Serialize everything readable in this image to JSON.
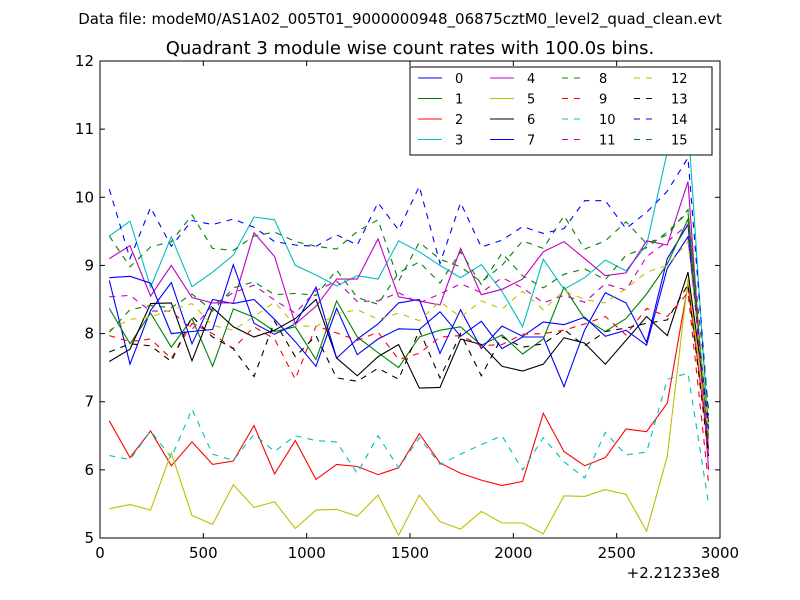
{
  "chart_data": {
    "type": "line",
    "suptitle": "Data file: modeM0/AS1A02_005T01_9000000948_06875cztM0_level2_quad_clean.evt",
    "title": "Quadrant 3 module wise count rates with 100.0s bins.",
    "xlabel": "",
    "ylabel": "",
    "x_offset_label": "+2.21233e8",
    "xlim": [
      0,
      3000
    ],
    "ylim": [
      5,
      12
    ],
    "xticks": [
      0,
      500,
      1000,
      1500,
      2000,
      2500,
      3000
    ],
    "yticks": [
      5,
      6,
      7,
      8,
      9,
      10,
      11,
      12
    ],
    "grid": false,
    "legend_position": "top-right",
    "legend_columns": 4,
    "x": [
      45,
      145,
      245,
      345,
      445,
      545,
      645,
      745,
      845,
      945,
      1045,
      1145,
      1245,
      1345,
      1445,
      1545,
      1645,
      1745,
      1845,
      1945,
      2045,
      2145,
      2245,
      2345,
      2445,
      2545,
      2645,
      2745,
      2845,
      2945
    ],
    "series": [
      {
        "name": "0",
        "color": "#0000ff",
        "dash": "solid",
        "values": [
          8.78,
          7.55,
          8.34,
          8.75,
          7.85,
          8.5,
          8.44,
          8.5,
          8.21,
          7.88,
          7.52,
          8.37,
          7.69,
          7.92,
          8.07,
          8.06,
          8.32,
          7.96,
          8.18,
          7.78,
          7.95,
          7.95,
          7.22,
          8.05,
          8.6,
          8.45,
          7.87,
          9.1,
          9.6,
          6.3
        ]
      },
      {
        "name": "1",
        "color": "#008000",
        "dash": "solid",
        "values": [
          8.37,
          7.85,
          8.3,
          7.8,
          8.22,
          7.52,
          8.36,
          8.24,
          8.03,
          8.1,
          7.62,
          8.48,
          7.95,
          7.72,
          7.5,
          7.95,
          8.05,
          8.1,
          7.83,
          7.98,
          7.7,
          7.92,
          8.68,
          8.22,
          8.03,
          8.22,
          8.58,
          9.02,
          9.68,
          6.5
        ]
      },
      {
        "name": "2",
        "color": "#ff0000",
        "dash": "solid",
        "values": [
          6.72,
          6.18,
          6.57,
          6.06,
          6.41,
          6.08,
          6.13,
          6.65,
          5.94,
          6.43,
          5.86,
          6.08,
          6.05,
          5.93,
          6.03,
          6.53,
          6.1,
          5.95,
          5.85,
          5.77,
          5.83,
          6.83,
          6.27,
          6.06,
          6.18,
          6.6,
          6.56,
          6.98,
          8.72,
          6.3
        ]
      },
      {
        "name": "3",
        "color": "#00bfbf",
        "dash": "solid",
        "values": [
          9.43,
          9.65,
          8.68,
          9.42,
          8.69,
          8.9,
          9.15,
          9.71,
          9.67,
          9.0,
          8.86,
          8.7,
          8.85,
          8.8,
          9.36,
          9.2,
          9.0,
          8.82,
          9.01,
          8.62,
          8.1,
          9.09,
          8.65,
          8.82,
          9.08,
          8.92,
          9.3,
          10.67,
          11.1,
          6.5
        ]
      },
      {
        "name": "4",
        "color": "#bf00bf",
        "dash": "solid",
        "values": [
          9.1,
          9.29,
          8.55,
          9.0,
          8.53,
          8.45,
          8.45,
          9.48,
          9.13,
          8.14,
          8.4,
          8.8,
          8.8,
          9.39,
          8.54,
          8.48,
          8.42,
          9.25,
          8.57,
          8.65,
          8.8,
          9.2,
          9.35,
          9.1,
          8.85,
          8.89,
          9.36,
          9.3,
          10.23,
          6.0
        ]
      },
      {
        "name": "5",
        "color": "#bfbf00",
        "dash": "solid",
        "values": [
          5.43,
          5.49,
          5.41,
          6.25,
          5.33,
          5.2,
          5.78,
          5.45,
          5.53,
          5.14,
          5.41,
          5.42,
          5.32,
          5.63,
          5.04,
          5.63,
          5.24,
          5.13,
          5.39,
          5.22,
          5.22,
          5.06,
          5.62,
          5.61,
          5.71,
          5.64,
          5.1,
          6.2,
          8.8,
          6.5
        ]
      },
      {
        "name": "6",
        "color": "#000000",
        "dash": "solid",
        "values": [
          7.59,
          7.77,
          8.44,
          8.45,
          7.6,
          8.38,
          8.1,
          7.95,
          8.05,
          8.22,
          8.5,
          7.64,
          7.38,
          7.66,
          7.84,
          7.2,
          7.21,
          7.92,
          7.84,
          7.52,
          7.45,
          7.55,
          7.94,
          7.86,
          7.55,
          7.9,
          8.25,
          7.97,
          8.9,
          6.7
        ]
      },
      {
        "name": "7",
        "color": "#0000ff",
        "dash": "solid",
        "values": [
          8.82,
          8.84,
          8.74,
          8.0,
          8.03,
          8.06,
          9.01,
          8.15,
          7.99,
          8.14,
          8.68,
          7.64,
          7.92,
          8.14,
          8.45,
          8.5,
          7.71,
          8.35,
          7.78,
          8.11,
          7.96,
          8.17,
          8.13,
          8.24,
          7.96,
          8.05,
          7.83,
          8.96,
          9.42,
          6.6
        ]
      },
      {
        "name": "8",
        "color": "#008000",
        "dash": "dashed",
        "values": [
          9.43,
          8.98,
          9.27,
          9.35,
          9.74,
          9.25,
          9.22,
          9.43,
          9.49,
          9.35,
          9.28,
          9.24,
          9.5,
          9.67,
          8.77,
          9.34,
          9.09,
          8.98,
          8.76,
          9.0,
          9.36,
          9.25,
          9.73,
          9.24,
          9.36,
          9.64,
          9.32,
          9.45,
          9.82,
          6.4
        ]
      },
      {
        "name": "9",
        "color": "#ff0000",
        "dash": "dashed",
        "values": [
          7.97,
          7.88,
          7.92,
          7.63,
          8.15,
          8.0,
          7.78,
          8.1,
          7.92,
          7.33,
          8.11,
          8.01,
          7.9,
          8.02,
          7.62,
          7.71,
          7.95,
          7.97,
          7.82,
          7.84,
          7.99,
          8.0,
          8.05,
          8.14,
          8.25,
          7.98,
          8.37,
          8.25,
          8.6,
          5.8
        ]
      },
      {
        "name": "10",
        "color": "#00bfbf",
        "dash": "dashed",
        "values": [
          6.21,
          6.15,
          6.57,
          6.18,
          6.89,
          6.23,
          6.14,
          6.52,
          6.27,
          6.5,
          6.43,
          6.41,
          5.95,
          6.5,
          6.03,
          6.47,
          6.08,
          6.23,
          6.37,
          6.5,
          6.0,
          6.47,
          6.12,
          5.88,
          6.55,
          6.22,
          6.26,
          7.33,
          7.42,
          5.5
        ]
      },
      {
        "name": "11",
        "color": "#bf00bf",
        "dash": "dashed",
        "values": [
          8.54,
          8.56,
          8.33,
          8.33,
          8.06,
          8.42,
          8.6,
          8.71,
          8.49,
          8.3,
          8.63,
          8.77,
          8.47,
          8.48,
          8.6,
          8.45,
          8.58,
          8.73,
          8.6,
          8.82,
          8.67,
          8.45,
          8.56,
          8.46,
          8.73,
          8.64,
          9.13,
          9.35,
          9.6,
          6.2
        ]
      },
      {
        "name": "12",
        "color": "#bfbf00",
        "dash": "dashed",
        "values": [
          8.05,
          8.21,
          8.24,
          8.35,
          8.44,
          8.12,
          8.05,
          8.25,
          8.46,
          8.12,
          8.1,
          8.29,
          8.35,
          8.21,
          8.3,
          8.19,
          8.47,
          8.24,
          8.48,
          8.36,
          8.62,
          8.35,
          8.63,
          8.5,
          8.45,
          8.66,
          8.9,
          9.0,
          9.35,
          6.6
        ]
      },
      {
        "name": "13",
        "color": "#000000",
        "dash": "dashed",
        "values": [
          7.73,
          7.85,
          7.82,
          7.59,
          8.25,
          7.95,
          7.78,
          7.37,
          8.18,
          7.66,
          7.97,
          7.35,
          7.3,
          7.49,
          7.33,
          8.05,
          7.35,
          8.0,
          7.38,
          7.95,
          7.8,
          7.85,
          8.06,
          7.82,
          8.03,
          8.08,
          8.15,
          8.2,
          8.72,
          6.2
        ]
      },
      {
        "name": "14",
        "color": "#0000ff",
        "dash": "dashed",
        "values": [
          10.12,
          9.1,
          9.85,
          9.28,
          9.66,
          9.6,
          9.68,
          9.56,
          9.35,
          9.3,
          9.28,
          9.45,
          9.3,
          9.92,
          9.52,
          10.16,
          9.03,
          9.92,
          9.27,
          9.37,
          9.57,
          9.47,
          9.54,
          9.95,
          9.95,
          9.54,
          9.78,
          10.09,
          10.58,
          6.8
        ]
      },
      {
        "name": "15",
        "color": "#008000",
        "dash": "dashed",
        "values": [
          8.02,
          8.35,
          8.41,
          8.38,
          8.58,
          8.33,
          8.67,
          8.76,
          8.57,
          8.59,
          8.56,
          8.93,
          8.53,
          8.43,
          8.89,
          9.05,
          8.74,
          9.2,
          8.72,
          9.18,
          8.85,
          8.67,
          8.87,
          8.95,
          8.79,
          9.15,
          9.26,
          9.49,
          9.78,
          6.9
        ]
      }
    ]
  }
}
